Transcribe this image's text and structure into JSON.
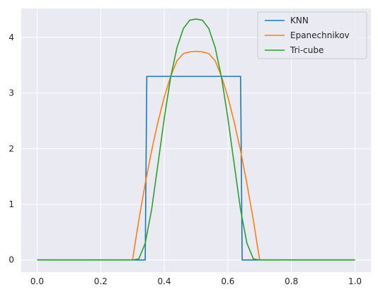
{
  "chart_data": {
    "type": "line",
    "title": "",
    "xlabel": "",
    "ylabel": "",
    "xlim": [
      -0.05,
      1.05
    ],
    "ylim": [
      -0.22,
      4.52
    ],
    "grid": true,
    "legend_position": "top-right",
    "x_ticks": [
      "0.0",
      "0.2",
      "0.4",
      "0.6",
      "0.8",
      "1.0"
    ],
    "x_tick_values": [
      0,
      0.2,
      0.4,
      0.6,
      0.8,
      1.0
    ],
    "y_ticks": [
      "0",
      "1",
      "2",
      "3",
      "4"
    ],
    "y_tick_values": [
      0,
      1,
      2,
      3,
      4
    ],
    "series": [
      {
        "name": "KNN",
        "color": "#1f77b4",
        "points": [
          [
            0,
            0
          ],
          [
            0.34,
            0
          ],
          [
            0.345,
            3.3
          ],
          [
            0.64,
            3.3
          ],
          [
            0.645,
            0
          ],
          [
            1.0,
            0
          ]
        ]
      },
      {
        "name": "Epanechnikov",
        "color": "#ff7f0e",
        "points": [
          [
            0,
            0
          ],
          [
            0.3,
            0
          ],
          [
            0.32,
            0.72
          ],
          [
            0.34,
            1.37
          ],
          [
            0.36,
            1.96
          ],
          [
            0.38,
            2.48
          ],
          [
            0.4,
            2.93
          ],
          [
            0.42,
            3.3
          ],
          [
            0.44,
            3.58
          ],
          [
            0.46,
            3.71
          ],
          [
            0.48,
            3.74
          ],
          [
            0.5,
            3.75
          ],
          [
            0.52,
            3.74
          ],
          [
            0.54,
            3.71
          ],
          [
            0.56,
            3.58
          ],
          [
            0.58,
            3.3
          ],
          [
            0.6,
            2.93
          ],
          [
            0.62,
            2.48
          ],
          [
            0.64,
            1.96
          ],
          [
            0.66,
            1.37
          ],
          [
            0.68,
            0.72
          ],
          [
            0.7,
            0
          ],
          [
            1.0,
            0
          ]
        ]
      },
      {
        "name": "Tri-cube",
        "color": "#2ca02c",
        "points": [
          [
            0,
            0
          ],
          [
            0.3,
            0
          ],
          [
            0.32,
            0.02
          ],
          [
            0.34,
            0.3
          ],
          [
            0.36,
            0.9
          ],
          [
            0.38,
            1.72
          ],
          [
            0.4,
            2.55
          ],
          [
            0.42,
            3.28
          ],
          [
            0.44,
            3.82
          ],
          [
            0.46,
            4.16
          ],
          [
            0.48,
            4.31
          ],
          [
            0.5,
            4.33
          ],
          [
            0.52,
            4.31
          ],
          [
            0.54,
            4.16
          ],
          [
            0.56,
            3.82
          ],
          [
            0.58,
            3.28
          ],
          [
            0.6,
            2.55
          ],
          [
            0.62,
            1.72
          ],
          [
            0.64,
            0.9
          ],
          [
            0.66,
            0.3
          ],
          [
            0.68,
            0.02
          ],
          [
            0.7,
            0
          ],
          [
            1.0,
            0
          ]
        ]
      }
    ]
  }
}
